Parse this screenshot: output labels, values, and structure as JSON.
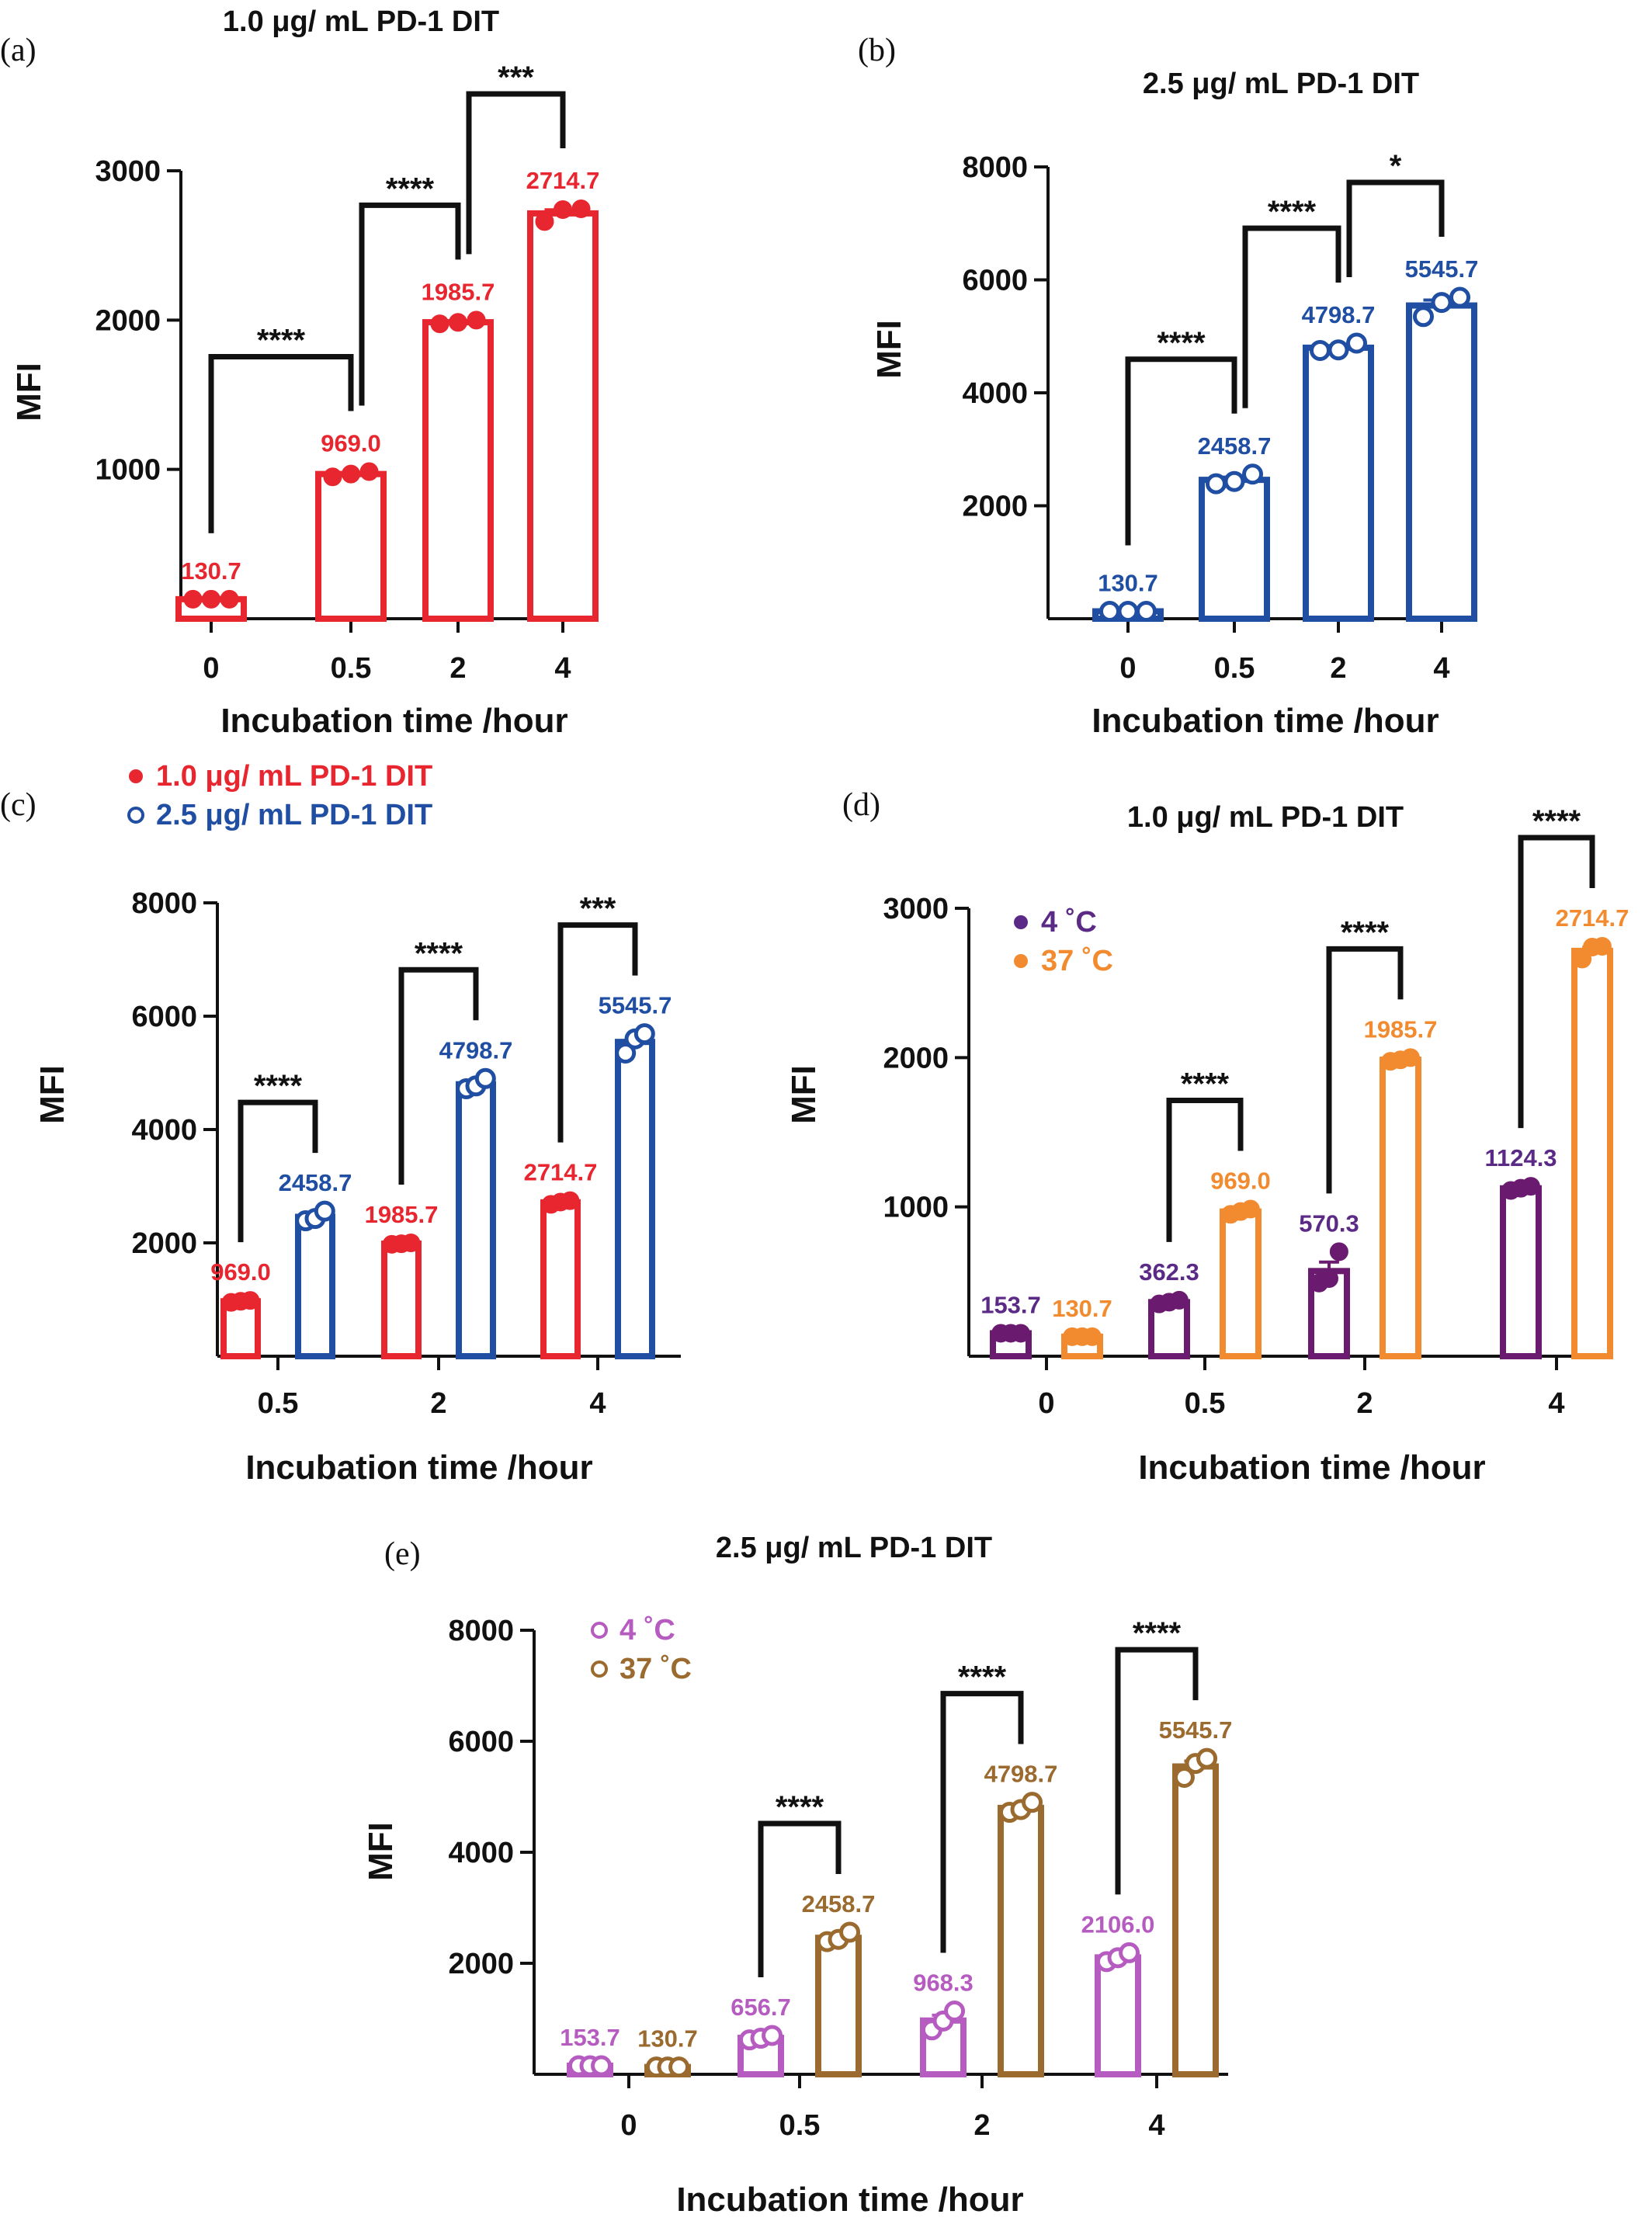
{
  "chart_data": [
    {
      "panel": "(a)",
      "type": "bar",
      "title": "1.0 μg/ mL PD-1 DIT",
      "xlabel": "Incubation time /hour",
      "ylabel": "MFI",
      "categories": [
        "0",
        "0.5",
        "2",
        "4"
      ],
      "ylim": [
        0,
        3000
      ],
      "yticks": [
        1000,
        2000,
        3000
      ],
      "series": [
        {
          "values": [
            130.7,
            969.0,
            1985.7,
            2714.7
          ],
          "labels": [
            "130.7",
            "969.0",
            "1985.7",
            "2714.7"
          ],
          "points": [
            [
              130.7,
              130.7,
              130.7
            ],
            [
              950,
              969,
              985
            ],
            [
              1975,
              1985,
              2000
            ],
            [
              2660,
              2740,
              2745
            ]
          ],
          "color": "#e8262f",
          "marker": "filled"
        }
      ],
      "comparisons": [
        {
          "from": 0,
          "to": 1,
          "label": "****"
        },
        {
          "from": 1,
          "to": 2,
          "label": "****"
        },
        {
          "from": 2,
          "to": 3,
          "label": "***"
        }
      ]
    },
    {
      "panel": "(b)",
      "type": "bar",
      "title": "2.5 μg/ mL PD-1 DIT",
      "xlabel": "Incubation time /hour",
      "ylabel": "MFI",
      "categories": [
        "0",
        "0.5",
        "2",
        "4"
      ],
      "ylim": [
        0,
        8000
      ],
      "yticks": [
        2000,
        4000,
        6000,
        8000
      ],
      "series": [
        {
          "values": [
            130.7,
            2458.7,
            4798.7,
            5545.7
          ],
          "labels": [
            "130.7",
            "2458.7",
            "4798.7",
            "5545.7"
          ],
          "points": [
            [
              130.7,
              130.7,
              130.7
            ],
            [
              2390,
              2430,
              2560
            ],
            [
              4750,
              4760,
              4880
            ],
            [
              5350,
              5600,
              5690
            ]
          ],
          "color": "#1f4ea3",
          "marker": "open"
        }
      ],
      "comparisons": [
        {
          "from": 0,
          "to": 1,
          "label": "****"
        },
        {
          "from": 1,
          "to": 2,
          "label": "****"
        },
        {
          "from": 2,
          "to": 3,
          "label": "*"
        }
      ]
    },
    {
      "panel": "(c)",
      "type": "bar",
      "title": "",
      "xlabel": "Incubation time /hour",
      "ylabel": "MFI",
      "categories": [
        "0.5",
        "2",
        "4"
      ],
      "ylim": [
        0,
        8000
      ],
      "yticks": [
        2000,
        4000,
        6000,
        8000
      ],
      "legend": "top-left",
      "series": [
        {
          "name": "1.0 μg/ mL PD-1 DIT",
          "values": [
            969.0,
            1985.7,
            2714.7
          ],
          "labels": [
            "969.0",
            "1985.7",
            "2714.7"
          ],
          "points": [
            [
              950,
              969,
              985
            ],
            [
              1975,
              1985,
              2000
            ],
            [
              2680,
              2720,
              2745
            ]
          ],
          "color": "#e8262f",
          "marker": "filled"
        },
        {
          "name": "2.5 μg/ mL PD-1 DIT",
          "values": [
            2458.7,
            4798.7,
            5545.7
          ],
          "labels": [
            "2458.7",
            "4798.7",
            "5545.7"
          ],
          "points": [
            [
              2390,
              2430,
              2560
            ],
            [
              4720,
              4770,
              4900
            ],
            [
              5350,
              5600,
              5690
            ]
          ],
          "color": "#1f4ea3",
          "marker": "open"
        }
      ],
      "comparisons": [
        {
          "cat": 0,
          "label": "****"
        },
        {
          "cat": 1,
          "label": "****"
        },
        {
          "cat": 2,
          "label": "***"
        }
      ]
    },
    {
      "panel": "(d)",
      "type": "bar",
      "title": "1.0 μg/ mL PD-1 DIT",
      "xlabel": "Incubation time /hour",
      "ylabel": "MFI",
      "categories": [
        "0",
        "0.5",
        "2",
        "4"
      ],
      "ylim": [
        0,
        3000
      ],
      "yticks": [
        1000,
        2000,
        3000
      ],
      "legend": "top-left",
      "series": [
        {
          "name": "4 ˚C",
          "values": [
            153.7,
            362.3,
            570.3,
            1124.3
          ],
          "labels": [
            "153.7",
            "362.3",
            "570.3",
            "1124.3"
          ],
          "points": [
            [
              153.7,
              153.7,
              153.7
            ],
            [
              350,
              362,
              375
            ],
            [
              490,
              520,
              700
            ],
            [
              1110,
              1125,
              1138
            ]
          ],
          "color": "#5b2a86",
          "fill_color": "#6a1b6f",
          "marker": "filled"
        },
        {
          "name": "37 ˚C",
          "values": [
            130.7,
            969.0,
            1985.7,
            2714.7
          ],
          "labels": [
            "130.7",
            "969.0",
            "1985.7",
            "2714.7"
          ],
          "points": [
            [
              130.7,
              130.7,
              130.7
            ],
            [
              950,
              969,
              985
            ],
            [
              1975,
              1985,
              2000
            ],
            [
              2660,
              2740,
              2745
            ]
          ],
          "color": "#f28b30",
          "marker": "filled"
        }
      ],
      "comparisons": [
        {
          "cat": 1,
          "label": "****"
        },
        {
          "cat": 2,
          "label": "****"
        },
        {
          "cat": 3,
          "label": "****"
        }
      ]
    },
    {
      "panel": "(e)",
      "type": "bar",
      "title": "2.5 μg/ mL PD-1 DIT",
      "xlabel": "Incubation time /hour",
      "ylabel": "MFI",
      "categories": [
        "0",
        "0.5",
        "2",
        "4"
      ],
      "ylim": [
        0,
        8000
      ],
      "yticks": [
        2000,
        4000,
        6000,
        8000
      ],
      "legend": "top-left",
      "series": [
        {
          "name": "4 ˚C",
          "values": [
            153.7,
            656.7,
            968.3,
            2106.0
          ],
          "labels": [
            "153.7",
            "656.7",
            "968.3",
            "2106.0"
          ],
          "points": [
            [
              153.7,
              153.7,
              153.7
            ],
            [
              620,
              650,
              700
            ],
            [
              800,
              960,
              1140
            ],
            [
              2030,
              2100,
              2190
            ]
          ],
          "color": "#b65cc0",
          "marker": "open"
        },
        {
          "name": "37 ˚C",
          "values": [
            130.7,
            2458.7,
            4798.7,
            5545.7
          ],
          "labels": [
            "130.7",
            "2458.7",
            "4798.7",
            "5545.7"
          ],
          "points": [
            [
              130.7,
              130.7,
              130.7
            ],
            [
              2390,
              2430,
              2560
            ],
            [
              4720,
              4770,
              4900
            ],
            [
              5350,
              5600,
              5690
            ]
          ],
          "color": "#9a6a2f",
          "marker": "open"
        }
      ],
      "comparisons": [
        {
          "cat": 1,
          "label": "****"
        },
        {
          "cat": 2,
          "label": "****"
        },
        {
          "cat": 3,
          "label": "****"
        }
      ]
    }
  ]
}
